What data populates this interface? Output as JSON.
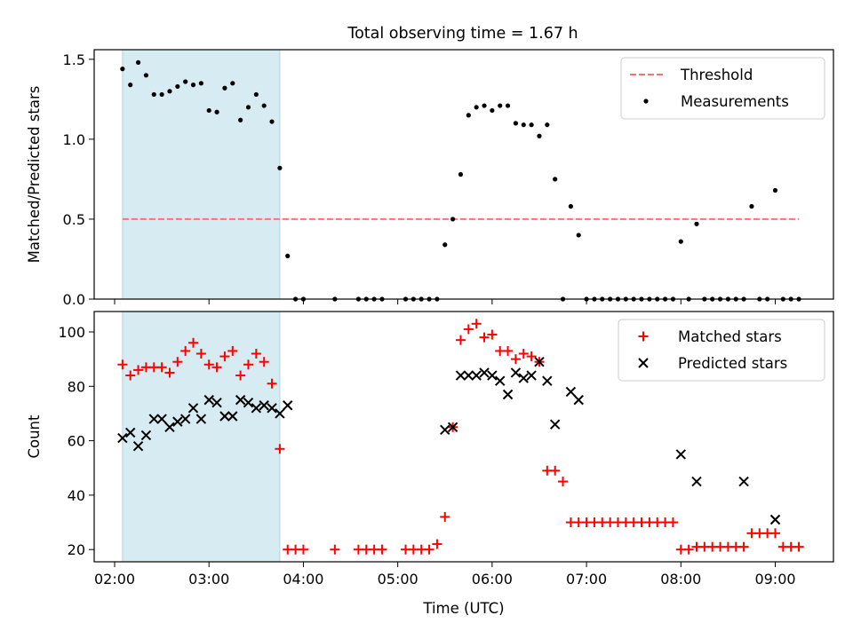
{
  "title": "Total observing time = 1.67 h",
  "colors": {
    "threshold": "#ff7070",
    "measurements": "#000000",
    "matched": "#ff0000",
    "predicted": "#000000",
    "span": "#add8e6"
  },
  "chart_data": [
    {
      "type": "scatter",
      "ylabel": "Matched/Predicted stars",
      "ylim": [
        0,
        1.56
      ],
      "yticks": [
        0.0,
        0.5,
        1.0,
        1.5
      ],
      "ytick_labels": [
        "0.0",
        "0.5",
        "1.0",
        "1.5"
      ],
      "legend_position": "upper right",
      "shaded_span": [
        "02:05",
        "03:45"
      ],
      "series": [
        {
          "name": "Threshold",
          "style": "dashed-line",
          "x": [
            "02:05",
            "09:15"
          ],
          "y": [
            0.5,
            0.5
          ]
        },
        {
          "name": "Measurements",
          "style": "dots",
          "x": [
            "02:05",
            "02:10",
            "02:15",
            "02:20",
            "02:25",
            "02:30",
            "02:35",
            "02:40",
            "02:45",
            "02:50",
            "02:55",
            "03:00",
            "03:05",
            "03:10",
            "03:15",
            "03:20",
            "03:25",
            "03:30",
            "03:35",
            "03:40",
            "03:45",
            "03:50",
            "03:55",
            "04:00",
            "04:20",
            "04:35",
            "04:40",
            "04:45",
            "04:50",
            "05:05",
            "05:10",
            "05:15",
            "05:20",
            "05:25",
            "05:30",
            "05:35",
            "05:40",
            "05:45",
            "05:50",
            "05:55",
            "06:00",
            "06:05",
            "06:10",
            "06:15",
            "06:20",
            "06:25",
            "06:30",
            "06:35",
            "06:40",
            "06:45",
            "06:50",
            "06:55",
            "07:00",
            "07:05",
            "07:10",
            "07:15",
            "07:20",
            "07:25",
            "07:30",
            "07:35",
            "07:40",
            "07:45",
            "07:50",
            "07:55",
            "08:00",
            "08:05",
            "08:10",
            "08:15",
            "08:20",
            "08:25",
            "08:30",
            "08:35",
            "08:40",
            "08:45",
            "08:50",
            "08:55",
            "09:00",
            "09:05",
            "09:10",
            "09:15"
          ],
          "y": [
            1.44,
            1.34,
            1.48,
            1.4,
            1.28,
            1.28,
            1.3,
            1.33,
            1.36,
            1.34,
            1.35,
            1.18,
            1.17,
            1.32,
            1.35,
            1.12,
            1.2,
            1.28,
            1.21,
            1.11,
            0.82,
            0.27,
            0.0,
            0.0,
            0.0,
            0.0,
            0.0,
            0.0,
            0.0,
            0.0,
            0.0,
            0.0,
            0.0,
            0.0,
            0.34,
            0.5,
            0.78,
            1.15,
            1.2,
            1.21,
            1.18,
            1.21,
            1.21,
            1.1,
            1.09,
            1.09,
            1.02,
            1.09,
            0.75,
            0.0,
            0.58,
            0.4,
            0.0,
            0.0,
            0.0,
            0.0,
            0.0,
            0.0,
            0.0,
            0.0,
            0.0,
            0.0,
            0.0,
            0.0,
            0.36,
            0.0,
            0.47,
            0.0,
            0.0,
            0.0,
            0.0,
            0.0,
            0.0,
            0.58,
            0.0,
            0.0,
            0.68,
            0.0,
            0.0,
            0.0
          ]
        }
      ]
    },
    {
      "type": "scatter",
      "ylabel": "Count",
      "xlabel": "Time (UTC)",
      "xlim": [
        "01:47",
        "09:37"
      ],
      "xticks": [
        "02:00",
        "03:00",
        "04:00",
        "05:00",
        "06:00",
        "07:00",
        "08:00",
        "09:00"
      ],
      "ylim": [
        15.5,
        107.5
      ],
      "yticks": [
        20,
        40,
        60,
        80,
        100
      ],
      "ytick_labels": [
        "20",
        "40",
        "60",
        "80",
        "100"
      ],
      "legend_position": "upper right",
      "shaded_span": [
        "02:05",
        "03:45"
      ],
      "series": [
        {
          "name": "Matched stars",
          "style": "plus",
          "x": [
            "02:05",
            "02:10",
            "02:15",
            "02:20",
            "02:25",
            "02:30",
            "02:35",
            "02:40",
            "02:45",
            "02:50",
            "02:55",
            "03:00",
            "03:05",
            "03:10",
            "03:15",
            "03:20",
            "03:25",
            "03:30",
            "03:35",
            "03:40",
            "03:45",
            "03:50",
            "03:55",
            "04:00",
            "04:20",
            "04:35",
            "04:40",
            "04:45",
            "04:50",
            "05:05",
            "05:10",
            "05:15",
            "05:20",
            "05:25",
            "05:30",
            "05:35",
            "05:40",
            "05:45",
            "05:50",
            "05:55",
            "06:00",
            "06:05",
            "06:10",
            "06:15",
            "06:20",
            "06:25",
            "06:30",
            "06:35",
            "06:40",
            "06:45",
            "06:50",
            "06:55",
            "07:00",
            "07:05",
            "07:10",
            "07:15",
            "07:20",
            "07:25",
            "07:30",
            "07:35",
            "07:40",
            "07:45",
            "07:50",
            "07:55",
            "08:00",
            "08:05",
            "08:10",
            "08:15",
            "08:20",
            "08:25",
            "08:30",
            "08:35",
            "08:40",
            "08:45",
            "08:50",
            "08:55",
            "09:00",
            "09:05",
            "09:10",
            "09:15"
          ],
          "y": [
            88,
            84,
            86,
            87,
            87,
            87,
            85,
            89,
            93,
            96,
            92,
            88,
            87,
            91,
            93,
            84,
            88,
            92,
            89,
            81,
            57,
            20,
            20,
            20,
            20,
            20,
            20,
            20,
            20,
            20,
            20,
            20,
            20,
            22,
            32,
            65,
            97,
            101,
            103,
            98,
            99,
            93,
            93,
            90,
            92,
            91,
            89,
            49,
            49,
            45,
            30,
            30,
            30,
            30,
            30,
            30,
            30,
            30,
            30,
            30,
            30,
            30,
            30,
            30,
            20,
            20,
            21,
            21,
            21,
            21,
            21,
            21,
            21,
            26,
            26,
            26,
            26,
            21,
            21,
            21
          ]
        },
        {
          "name": "Predicted stars",
          "style": "x",
          "x": [
            "02:05",
            "02:10",
            "02:15",
            "02:20",
            "02:25",
            "02:30",
            "02:35",
            "02:40",
            "02:45",
            "02:50",
            "02:55",
            "03:00",
            "03:05",
            "03:10",
            "03:15",
            "03:20",
            "03:25",
            "03:30",
            "03:35",
            "03:40",
            "03:45",
            "03:50",
            "05:30",
            "05:35",
            "05:40",
            "05:45",
            "05:50",
            "05:55",
            "06:00",
            "06:05",
            "06:10",
            "06:15",
            "06:20",
            "06:25",
            "06:30",
            "06:35",
            "06:40",
            "06:50",
            "06:55",
            "08:00",
            "08:10",
            "08:40",
            "09:00"
          ],
          "y": [
            61,
            63,
            58,
            62,
            68,
            68,
            65,
            67,
            68,
            72,
            68,
            75,
            74,
            69,
            69,
            75,
            74,
            72,
            73,
            72,
            70,
            73,
            64,
            65,
            84,
            84,
            84,
            85,
            84,
            82,
            77,
            85,
            83,
            84,
            89,
            82,
            66,
            78,
            75,
            55,
            45,
            45,
            31
          ]
        }
      ]
    }
  ]
}
